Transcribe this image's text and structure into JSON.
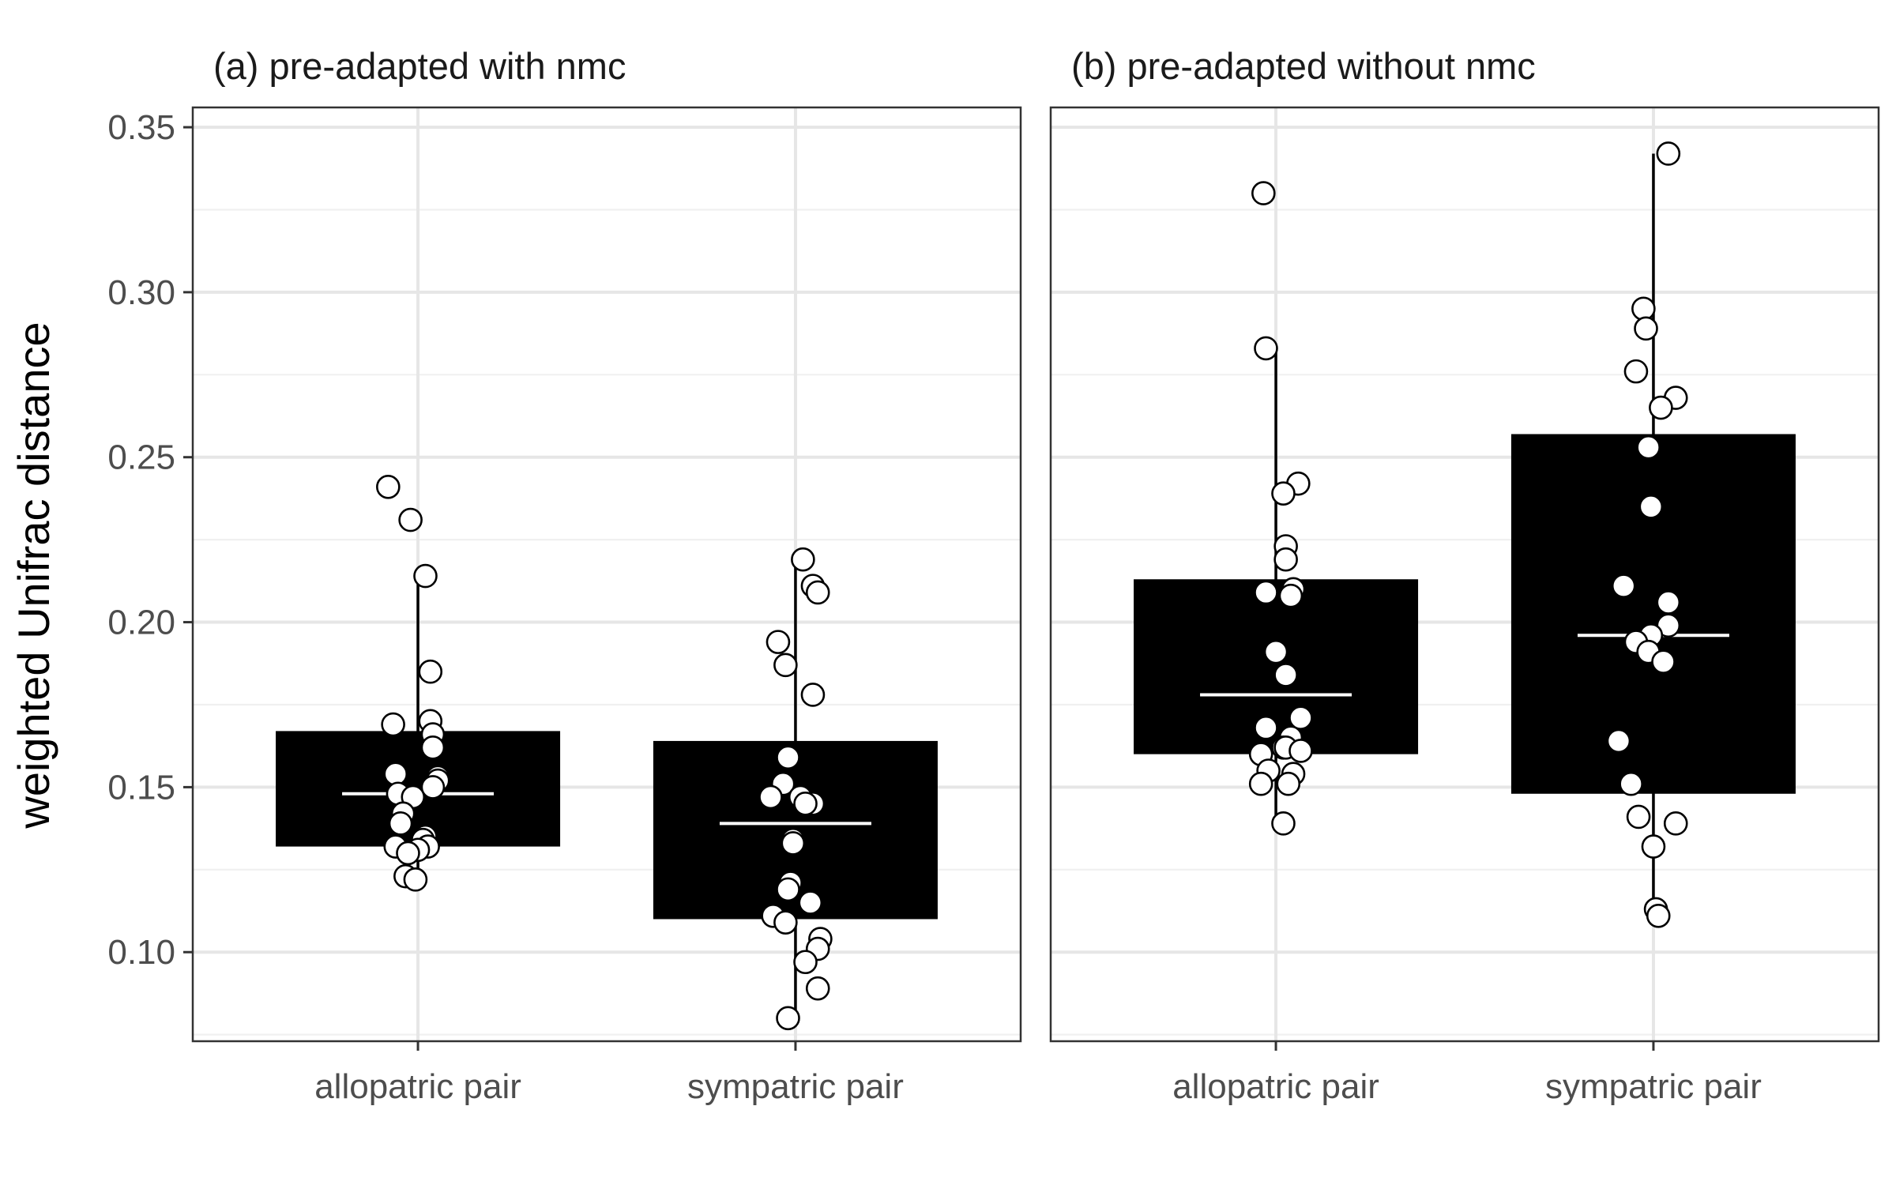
{
  "chart_data": {
    "type": "box",
    "ylabel": "weighted Unifrac distance",
    "ylim": [
      0.073,
      0.356
    ],
    "yticks": [
      "0.10",
      "0.15",
      "0.20",
      "0.25",
      "0.30",
      "0.35"
    ],
    "ytick_values": [
      0.1,
      0.15,
      0.2,
      0.25,
      0.3,
      0.35
    ],
    "grid": true,
    "categories": [
      "allopatric pair",
      "sympatric pair"
    ],
    "panels": [
      {
        "title": "(a) pre-adapted with nmc",
        "groups": [
          {
            "category": "allopatric pair",
            "box": {
              "lower_whisker": 0.122,
              "q1": 0.132,
              "median": 0.148,
              "q3": 0.167,
              "upper_whisker": 0.214
            },
            "points": [
              0.241,
              0.231,
              0.214,
              0.185,
              0.17,
              0.169,
              0.166,
              0.162,
              0.154,
              0.153,
              0.152,
              0.15,
              0.148,
              0.147,
              0.142,
              0.139,
              0.135,
              0.134,
              0.132,
              0.132,
              0.131,
              0.13,
              0.123,
              0.122
            ],
            "jitter": [
              -0.12,
              -0.03,
              0.03,
              0.05,
              0.05,
              -0.1,
              0.06,
              0.06,
              -0.09,
              0.08,
              0.08,
              0.06,
              -0.08,
              -0.02,
              -0.06,
              -0.07,
              0.03,
              0.02,
              -0.09,
              0.04,
              0.0,
              -0.04,
              -0.05,
              -0.01
            ]
          },
          {
            "category": "sympatric pair",
            "box": {
              "lower_whisker": 0.08,
              "q1": 0.11,
              "median": 0.139,
              "q3": 0.164,
              "upper_whisker": 0.219
            },
            "points": [
              0.219,
              0.211,
              0.209,
              0.194,
              0.187,
              0.178,
              0.159,
              0.151,
              0.147,
              0.147,
              0.145,
              0.145,
              0.134,
              0.133,
              0.121,
              0.119,
              0.115,
              0.111,
              0.109,
              0.104,
              0.101,
              0.097,
              0.089,
              0.08
            ],
            "jitter": [
              0.03,
              0.07,
              0.09,
              -0.07,
              -0.04,
              0.07,
              -0.03,
              -0.05,
              0.02,
              -0.1,
              0.07,
              0.04,
              -0.01,
              -0.01,
              -0.02,
              -0.03,
              0.06,
              -0.09,
              -0.04,
              0.1,
              0.09,
              0.04,
              0.09,
              -0.03
            ]
          }
        ]
      },
      {
        "title": "(b) pre-adapted without nmc",
        "groups": [
          {
            "category": "allopatric pair",
            "box": {
              "lower_whisker": 0.139,
              "q1": 0.16,
              "median": 0.178,
              "q3": 0.213,
              "upper_whisker": 0.283
            },
            "points": [
              0.33,
              0.283,
              0.242,
              0.239,
              0.223,
              0.219,
              0.21,
              0.209,
              0.208,
              0.191,
              0.184,
              0.171,
              0.168,
              0.165,
              0.162,
              0.162,
              0.16,
              0.161,
              0.155,
              0.154,
              0.151,
              0.151,
              0.139
            ],
            "jitter": [
              -0.05,
              -0.04,
              0.09,
              0.03,
              0.04,
              0.04,
              0.07,
              -0.04,
              0.06,
              0.0,
              0.04,
              0.1,
              -0.04,
              0.06,
              0.03,
              0.04,
              -0.06,
              0.1,
              -0.03,
              0.07,
              -0.06,
              0.05,
              0.03
            ]
          },
          {
            "category": "sympatric pair",
            "box": {
              "lower_whisker": 0.11,
              "q1": 0.148,
              "median": 0.196,
              "q3": 0.257,
              "upper_whisker": 0.342
            },
            "points": [
              0.342,
              0.295,
              0.289,
              0.276,
              0.268,
              0.265,
              0.253,
              0.235,
              0.211,
              0.206,
              0.199,
              0.196,
              0.194,
              0.191,
              0.188,
              0.164,
              0.151,
              0.141,
              0.139,
              0.132,
              0.113,
              0.111
            ],
            "jitter": [
              0.06,
              -0.04,
              -0.03,
              -0.07,
              0.09,
              0.03,
              -0.02,
              -0.01,
              -0.12,
              0.06,
              0.06,
              -0.01,
              -0.07,
              -0.02,
              0.04,
              -0.14,
              -0.09,
              -0.06,
              0.09,
              0.0,
              0.01,
              0.02
            ]
          }
        ]
      }
    ]
  }
}
